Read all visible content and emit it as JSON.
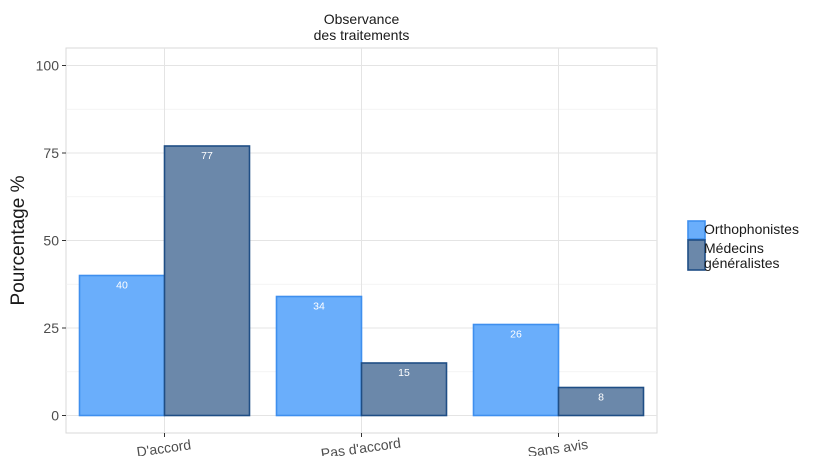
{
  "chart_data": {
    "type": "bar",
    "title": [
      "Observance",
      "des traitements"
    ],
    "xlabel": "",
    "ylabel": "Pourcentage %",
    "categories": [
      "D'accord",
      "Pas d'accord",
      "Sans avis"
    ],
    "series": [
      {
        "name": "Orthophonistes",
        "values": [
          40,
          34,
          26
        ],
        "fill": "#6aaefb",
        "stroke": "#3f8fee"
      },
      {
        "name": "Médecins généralistes",
        "values": [
          77,
          15,
          8
        ],
        "fill": "#6b88aa",
        "stroke": "#1f4e85"
      }
    ],
    "legend_lines": [
      [
        "Orthophonistes"
      ],
      [
        "Médecins",
        "généralistes"
      ]
    ],
    "ylim": [
      -5,
      105
    ],
    "yticks": [
      0,
      25,
      50,
      75,
      100
    ],
    "grid": true,
    "legend_position": "right",
    "tick_label_rotation": -8
  }
}
